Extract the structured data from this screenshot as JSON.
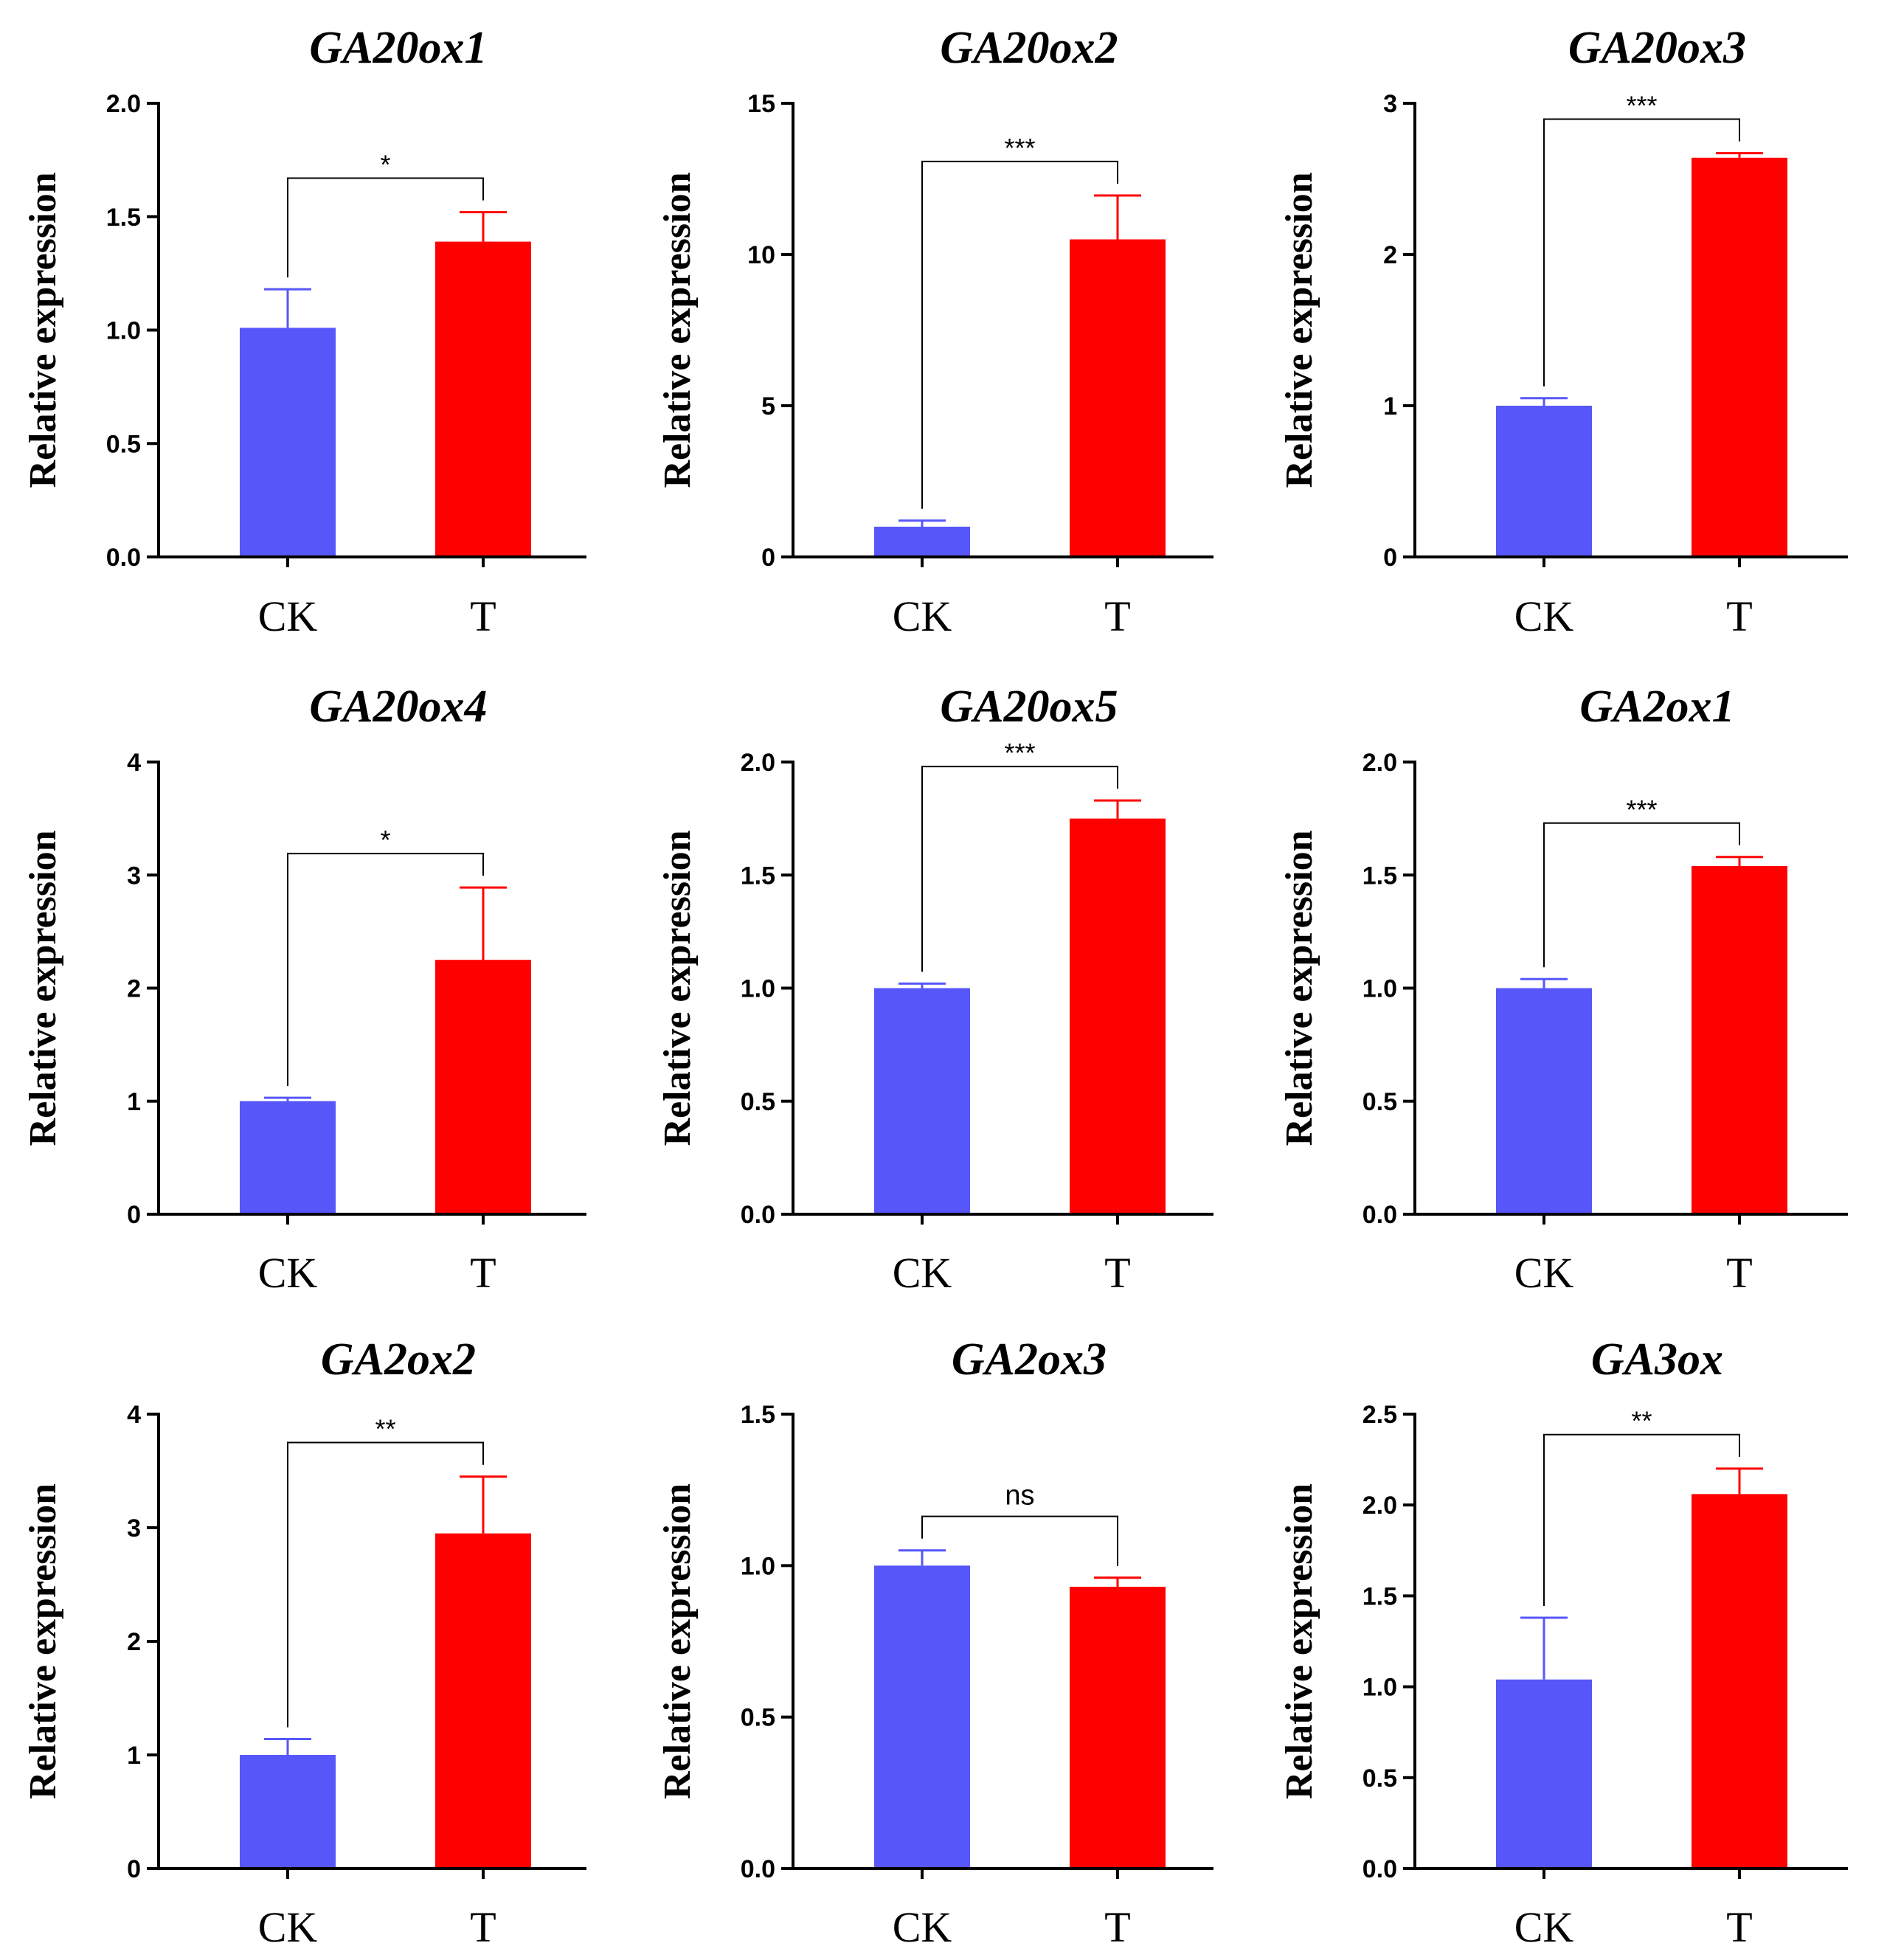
{
  "colors": {
    "CK": "#5757f9",
    "T": "#ff0000",
    "axis": "#000000"
  },
  "chart_data": [
    {
      "type": "bar",
      "title": "GA20ox1",
      "ylabel": "Relative expression",
      "categories": [
        "CK",
        "T"
      ],
      "values": [
        1.01,
        1.39
      ],
      "errors": [
        0.17,
        0.13
      ],
      "ylim": [
        0,
        2.0
      ],
      "yticks": [
        0,
        0.5,
        1.0,
        1.5,
        2.0
      ],
      "ytick_labels": [
        "0.0",
        "0.5",
        "1.0",
        "1.5",
        "2.0"
      ],
      "significance": "*"
    },
    {
      "type": "bar",
      "title": "GA20ox2",
      "ylabel": "Relative expression",
      "categories": [
        "CK",
        "T"
      ],
      "values": [
        1.0,
        10.5
      ],
      "errors": [
        0.2,
        1.45
      ],
      "ylim": [
        0,
        15
      ],
      "yticks": [
        0,
        5,
        10,
        15
      ],
      "ytick_labels": [
        "0",
        "5",
        "10",
        "15"
      ],
      "significance": "***"
    },
    {
      "type": "bar",
      "title": "GA20ox3",
      "ylabel": "Relative expression",
      "categories": [
        "CK",
        "T"
      ],
      "values": [
        1.0,
        2.64
      ],
      "errors": [
        0.05,
        0.03
      ],
      "ylim": [
        0,
        3
      ],
      "yticks": [
        0,
        1,
        2,
        3
      ],
      "ytick_labels": [
        "0",
        "1",
        "2",
        "3"
      ],
      "significance": "***"
    },
    {
      "type": "bar",
      "title": "GA20ox4",
      "ylabel": "Relative expression",
      "categories": [
        "CK",
        "T"
      ],
      "values": [
        1.0,
        2.25
      ],
      "errors": [
        0.03,
        0.64
      ],
      "ylim": [
        0,
        4
      ],
      "yticks": [
        0,
        1,
        2,
        3,
        4
      ],
      "ytick_labels": [
        "0",
        "1",
        "2",
        "3",
        "4"
      ],
      "significance": "*"
    },
    {
      "type": "bar",
      "title": "GA20ox5",
      "ylabel": "Relative expression",
      "categories": [
        "CK",
        "T"
      ],
      "values": [
        1.0,
        1.75
      ],
      "errors": [
        0.02,
        0.08
      ],
      "ylim": [
        0,
        2.0
      ],
      "yticks": [
        0,
        0.5,
        1.0,
        1.5,
        2.0
      ],
      "ytick_labels": [
        "0.0",
        "0.5",
        "1.0",
        "1.5",
        "2.0"
      ],
      "significance": "***"
    },
    {
      "type": "bar",
      "title": "GA2ox1",
      "ylabel": "Relative expression",
      "categories": [
        "CK",
        "T"
      ],
      "values": [
        1.0,
        1.54
      ],
      "errors": [
        0.04,
        0.04
      ],
      "ylim": [
        0,
        2.0
      ],
      "yticks": [
        0,
        0.5,
        1.0,
        1.5,
        2.0
      ],
      "ytick_labels": [
        "0.0",
        "0.5",
        "1.0",
        "1.5",
        "2.0"
      ],
      "significance": "***"
    },
    {
      "type": "bar",
      "title": "GA2ox2",
      "ylabel": "Relative expression",
      "categories": [
        "CK",
        "T"
      ],
      "values": [
        1.0,
        2.95
      ],
      "errors": [
        0.14,
        0.5
      ],
      "ylim": [
        0,
        4
      ],
      "yticks": [
        0,
        1,
        2,
        3,
        4
      ],
      "ytick_labels": [
        "0",
        "1",
        "2",
        "3",
        "4"
      ],
      "significance": "**"
    },
    {
      "type": "bar",
      "title": "GA2ox3",
      "ylabel": "Relative expression",
      "categories": [
        "CK",
        "T"
      ],
      "values": [
        1.0,
        0.93
      ],
      "errors": [
        0.05,
        0.03
      ],
      "ylim": [
        0,
        1.5
      ],
      "yticks": [
        0,
        0.5,
        1.0,
        1.5
      ],
      "ytick_labels": [
        "0.0",
        "0.5",
        "1.0",
        "1.5"
      ],
      "significance": "ns"
    },
    {
      "type": "bar",
      "title": "GA3ox",
      "ylabel": "Relative expression",
      "categories": [
        "CK",
        "T"
      ],
      "values": [
        1.04,
        2.06
      ],
      "errors": [
        0.34,
        0.14
      ],
      "ylim": [
        0,
        2.5
      ],
      "yticks": [
        0,
        0.5,
        1.0,
        1.5,
        2.0,
        2.5
      ],
      "ytick_labels": [
        "0.0",
        "0.5",
        "1.0",
        "1.5",
        "2.0",
        "2.5"
      ],
      "significance": "**"
    }
  ]
}
